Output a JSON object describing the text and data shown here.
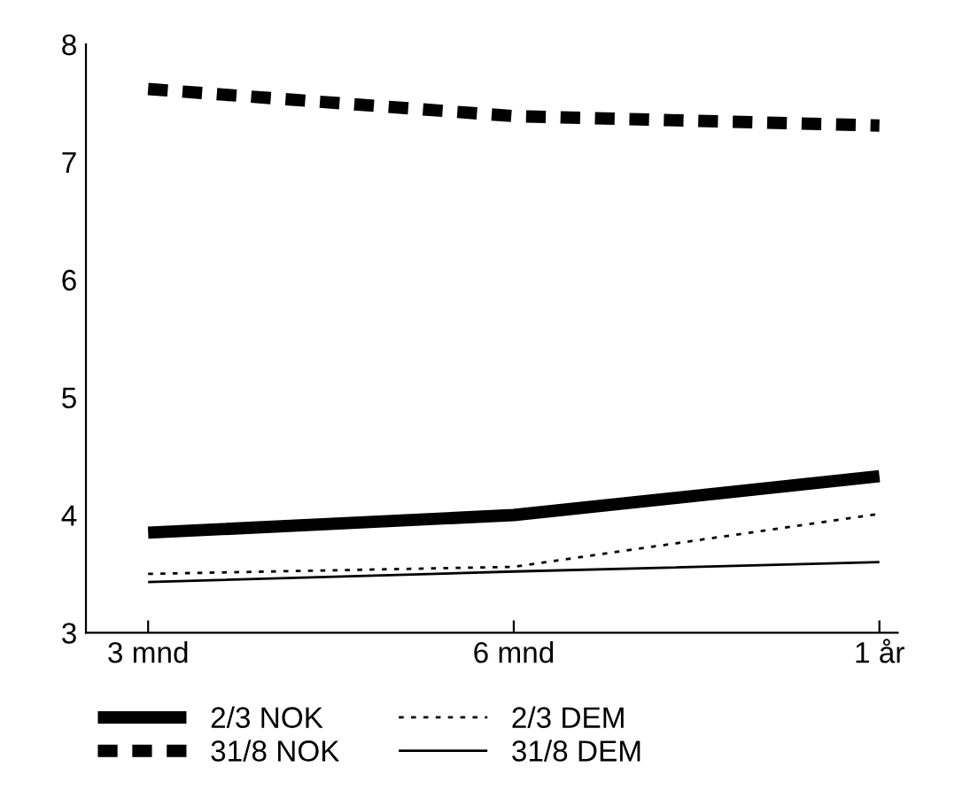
{
  "chart_data": {
    "type": "line",
    "categories": [
      "3 mnd",
      "6 mnd",
      "1 år"
    ],
    "series": [
      {
        "name": "2/3 NOK",
        "color": "#000000",
        "line_style": "solid",
        "values": [
          3.85,
          4.0,
          4.33
        ]
      },
      {
        "name": "31/8 NOK",
        "color": "#000000",
        "line_style": "dashed",
        "values": [
          7.62,
          7.39,
          7.31
        ]
      },
      {
        "name": "2/3 DEM",
        "color": "#000000",
        "line_style": "dotted",
        "values": [
          3.5,
          3.56,
          4.01
        ]
      },
      {
        "name": "31/8 DEM",
        "color": "#000000",
        "line_style": "solid",
        "values": [
          3.43,
          3.52,
          3.6
        ]
      }
    ],
    "ylim": [
      3,
      8
    ],
    "yticks": [
      3,
      4,
      5,
      6,
      7,
      8
    ],
    "grid": false,
    "legend": "bottom",
    "marker": "none"
  }
}
